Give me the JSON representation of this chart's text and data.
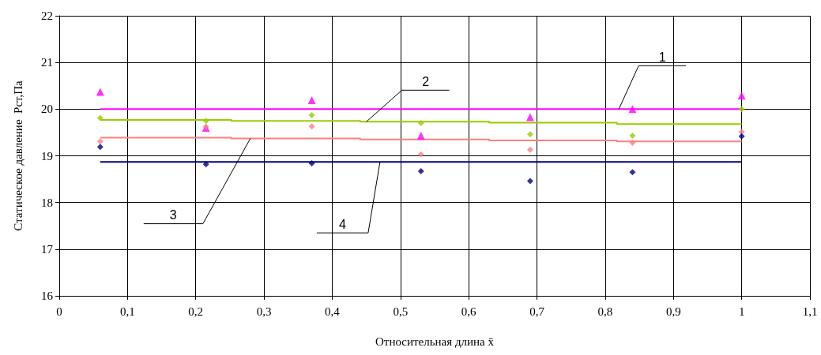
{
  "chart_data": {
    "type": "scatter",
    "xlabel": "Относительная длина x̄",
    "ylabel": "Статическое давление  Рст,Па",
    "xlim": [
      0,
      1.1
    ],
    "xticks": [
      0,
      {
        "value": 0.1,
        "label": "0,1"
      },
      {
        "value": 0.2,
        "label": "0,2"
      },
      {
        "value": 0.3,
        "label": "0,3"
      },
      {
        "value": 0.4,
        "label": "0,4"
      },
      {
        "value": 0.5,
        "label": "0,5"
      },
      {
        "value": 0.6,
        "label": "0,6"
      },
      {
        "value": 0.7,
        "label": "0,7"
      },
      {
        "value": 0.8,
        "label": "0,8"
      },
      {
        "value": 0.9,
        "label": "0,9"
      },
      1,
      {
        "value": 1.1,
        "label": "1,1"
      }
    ],
    "ylim": [
      16,
      22
    ],
    "yticks": [
      16,
      17,
      18,
      19,
      20,
      21,
      22
    ],
    "grid": true,
    "x": [
      0.06,
      0.215,
      0.37,
      0.53,
      0.69,
      0.84,
      1.0
    ],
    "series": [
      {
        "marker": "triangle",
        "color": "#ff00ff",
        "values": [
          20.37,
          19.6,
          20.19,
          19.43,
          19.83,
          20.0,
          20.29
        ]
      },
      {
        "marker": "diamond",
        "color": "#99cc00",
        "values": [
          19.81,
          19.75,
          19.87,
          19.7,
          19.46,
          19.43,
          20.0
        ]
      },
      {
        "marker": "diamond",
        "color": "#ff8080",
        "values": [
          19.31,
          19.62,
          19.63,
          19.03,
          19.13,
          19.28,
          19.51
        ]
      },
      {
        "marker": "diamond",
        "color": "#000080",
        "values": [
          19.19,
          18.82,
          18.84,
          18.67,
          18.46,
          18.65,
          19.42
        ]
      },
      {
        "type": "step",
        "color": "#ff00ff",
        "x": [
          0.06,
          1.0
        ],
        "values": [
          20.0,
          20.0
        ]
      },
      {
        "type": "step",
        "color": "#99cc00",
        "x": [
          0.06,
          0.252,
          0.441,
          0.63,
          0.817,
          1.0
        ],
        "values": [
          19.77,
          19.75,
          19.73,
          19.71,
          19.68,
          19.68
        ]
      },
      {
        "type": "step",
        "color": "#ff8080",
        "x": [
          0.06,
          0.252,
          0.441,
          0.63,
          0.817,
          1.0
        ],
        "values": [
          19.39,
          19.37,
          19.35,
          19.33,
          19.31,
          19.31
        ]
      },
      {
        "type": "step",
        "color": "#000080",
        "x": [
          0.06,
          1.0
        ],
        "values": [
          18.87,
          18.87
        ]
      }
    ],
    "annotations": [
      {
        "text": "1",
        "x": 0.82,
        "y": 20.0
      },
      {
        "text": "2",
        "x": 0.45,
        "y": 19.73
      },
      {
        "text": "3",
        "x": 0.28,
        "y": 19.37
      },
      {
        "text": "4",
        "x": 0.47,
        "y": 18.87
      }
    ]
  }
}
